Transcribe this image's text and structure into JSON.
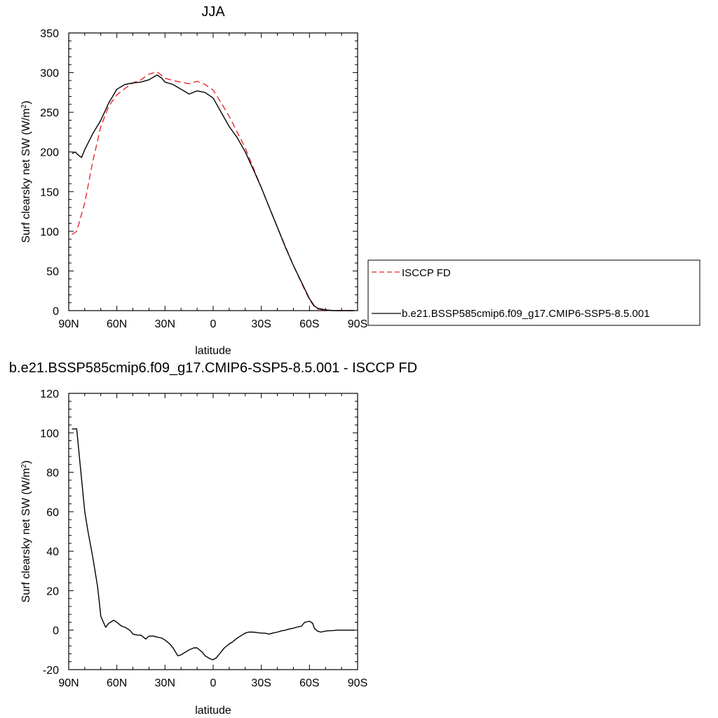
{
  "chart_data": [
    {
      "type": "line",
      "title": "JJA",
      "xlabel": "latitude",
      "ylabel": "Surf clearsky net SW (W/m",
      "ylabel_sup": "2",
      "ylabel_end": ")",
      "xlim": [
        90,
        -90
      ],
      "ylim": [
        0,
        350
      ],
      "x_ticks": [
        90,
        60,
        30,
        0,
        -30,
        -60,
        -90
      ],
      "x_tick_labels": [
        "90N",
        "60N",
        "30N",
        "0",
        "30S",
        "60S",
        "90S"
      ],
      "y_ticks": [
        0,
        50,
        100,
        150,
        200,
        250,
        300,
        350
      ],
      "y_tick_labels": [
        "0",
        "50",
        "100",
        "150",
        "200",
        "250",
        "300",
        "350"
      ],
      "legend": "right",
      "series": [
        {
          "name": "ISCCP FD",
          "color": "#e8282d",
          "style": "dashed",
          "x": [
            88,
            85,
            80,
            75,
            70,
            65,
            60,
            55,
            50,
            45,
            40,
            35,
            30,
            25,
            20,
            15,
            10,
            5,
            0,
            -5,
            -10,
            -15,
            -20,
            -25,
            -30,
            -35,
            -40,
            -45,
            -50,
            -55,
            -60,
            -63,
            -65,
            -70,
            -75,
            -80,
            -85,
            -88
          ],
          "y": [
            96,
            100,
            136,
            188,
            232,
            258,
            272,
            280,
            287,
            291,
            298,
            301,
            293,
            290,
            288,
            286,
            289,
            285,
            278,
            262,
            245,
            225,
            205,
            180,
            155,
            130,
            105,
            81,
            57,
            35,
            14,
            5,
            2,
            0.5,
            0,
            0,
            0,
            0
          ]
        },
        {
          "name": "b.e21.BSSP585cmip6.f09_g17.CMIP6-SSP5-8.5.001",
          "color": "#000000",
          "style": "solid",
          "x": [
            88,
            86,
            84,
            82,
            80,
            75,
            70,
            65,
            60,
            55,
            50,
            45,
            40,
            35,
            32,
            30,
            25,
            20,
            15,
            10,
            5,
            0,
            -5,
            -10,
            -15,
            -20,
            -25,
            -30,
            -35,
            -40,
            -45,
            -50,
            -55,
            -60,
            -63,
            -65,
            -70,
            -75,
            -80,
            -85,
            -88
          ],
          "y": [
            198,
            200,
            196,
            193,
            203,
            223,
            240,
            262,
            279,
            285,
            287,
            288,
            291,
            297,
            293,
            288,
            285,
            279,
            273,
            277,
            275,
            268,
            250,
            232,
            218,
            200,
            178,
            155,
            130,
            105,
            80,
            57,
            36,
            15,
            6,
            3,
            1,
            0,
            0,
            0,
            0
          ]
        }
      ]
    },
    {
      "type": "line",
      "title": "b.e21.BSSP585cmip6.f09_g17.CMIP6-SSP5-8.5.001 - ISCCP FD",
      "xlabel": "latitude",
      "ylabel": "Surf clearsky net SW (W/m",
      "ylabel_sup": "2",
      "ylabel_end": ")",
      "xlim": [
        90,
        -90
      ],
      "ylim": [
        -20,
        120
      ],
      "x_ticks": [
        90,
        60,
        30,
        0,
        -30,
        -60,
        -90
      ],
      "x_tick_labels": [
        "90N",
        "60N",
        "30N",
        "0",
        "30S",
        "60S",
        "90S"
      ],
      "y_ticks": [
        -20,
        0,
        20,
        40,
        60,
        80,
        100,
        120
      ],
      "y_tick_labels": [
        "-20",
        "0",
        "20",
        "40",
        "60",
        "80",
        "100",
        "120"
      ],
      "series": [
        {
          "color": "#000000",
          "style": "solid",
          "x": [
            88,
            85,
            83,
            80,
            78,
            75,
            72,
            70,
            67,
            65,
            62,
            60,
            57,
            55,
            52,
            50,
            47,
            45,
            42,
            40,
            37,
            35,
            32,
            30,
            27,
            25,
            22,
            20,
            17,
            15,
            12,
            10,
            7,
            5,
            2,
            0,
            -2,
            -5,
            -7,
            -10,
            -12,
            -15,
            -17,
            -20,
            -22,
            -25,
            -27,
            -30,
            -32,
            -35,
            -37,
            -40,
            -42,
            -45,
            -47,
            -50,
            -52,
            -55,
            -57,
            -60,
            -62,
            -63,
            -65,
            -67,
            -70,
            -72,
            -75,
            -77,
            -80,
            -82,
            -85,
            -88
          ],
          "y": [
            102,
            102,
            85,
            60,
            50,
            37,
            22,
            7,
            1.5,
            3.5,
            5,
            4,
            2,
            1.5,
            0,
            -2,
            -2.5,
            -2.5,
            -4.5,
            -3,
            -3,
            -3.5,
            -4,
            -5,
            -7,
            -9,
            -13,
            -12.5,
            -11,
            -10,
            -9,
            -9,
            -11,
            -13,
            -14.5,
            -15,
            -14,
            -11,
            -9,
            -7,
            -6,
            -4,
            -3,
            -1.5,
            -1,
            -1,
            -1.2,
            -1.5,
            -1.5,
            -2,
            -1.5,
            -1,
            -0.5,
            0,
            0.5,
            1,
            1.5,
            2,
            4,
            4.5,
            3.5,
            1,
            -0.5,
            -1,
            -0.5,
            -0.3,
            -0.2,
            0,
            0,
            0,
            0,
            0
          ]
        }
      ]
    }
  ]
}
